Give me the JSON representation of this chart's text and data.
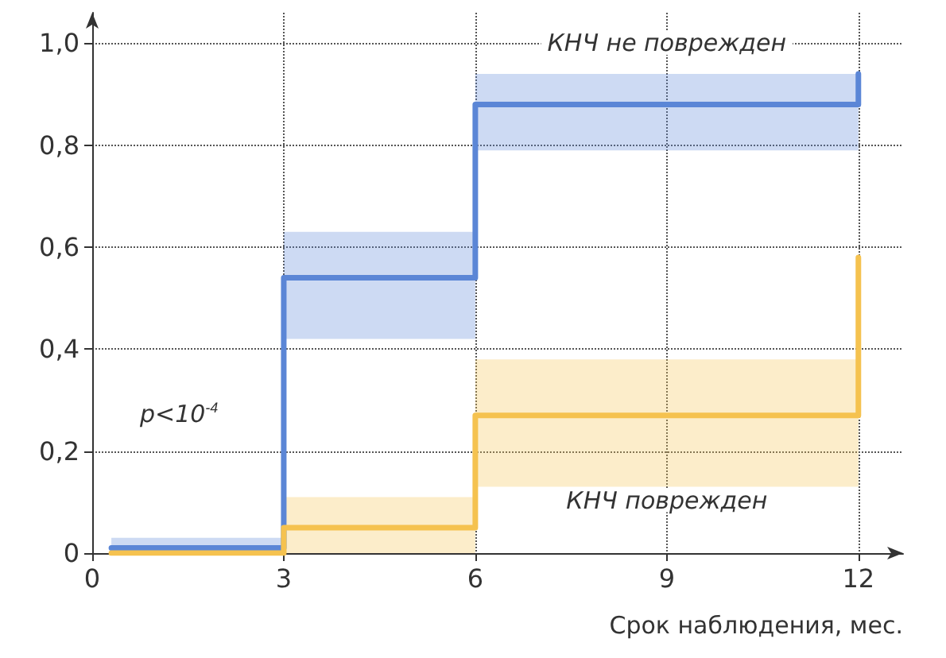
{
  "chart_data": {
    "type": "step",
    "xlabel": "Срок наблюдения, мес.",
    "annotations": [
      "p<10$^{-4}$"
    ],
    "series": [
      {
        "name": "КНЧ не поврежден",
        "color": "#5b86d6",
        "x": [
          0.3,
          3,
          6,
          12
        ],
        "values": [
          0.01,
          0.54,
          0.88,
          0.94
        ],
        "lower": [
          0,
          0.42,
          0.79,
          0.79
        ],
        "upper": [
          0.03,
          0.63,
          0.94,
          0.94
        ]
      },
      {
        "name": "КНЧ поврежден",
        "color": "#f5c24f",
        "x": [
          0.3,
          3,
          6,
          12
        ],
        "values": [
          0,
          0.05,
          0.27,
          0.58
        ],
        "lower": [
          null,
          0,
          0.13,
          0.13
        ],
        "upper": [
          null,
          0.11,
          0.38,
          0.38
        ]
      }
    ],
    "xlim": [
      0,
      12.7
    ],
    "xticks": [
      0,
      3,
      6,
      9,
      12
    ],
    "ylim": [
      0,
      1.06
    ],
    "yticks": [
      {
        "value": 0,
        "label": "0"
      },
      {
        "value": 0.2,
        "label": "0,2"
      },
      {
        "value": 0.4,
        "label": "0,4"
      },
      {
        "value": 0.6,
        "label": "0,6"
      },
      {
        "value": 0.8,
        "label": "0,8"
      },
      {
        "value": 1,
        "label": "1,0"
      }
    ],
    "grid": true,
    "legend": false,
    "marker": "none",
    "line_style": "solid"
  }
}
